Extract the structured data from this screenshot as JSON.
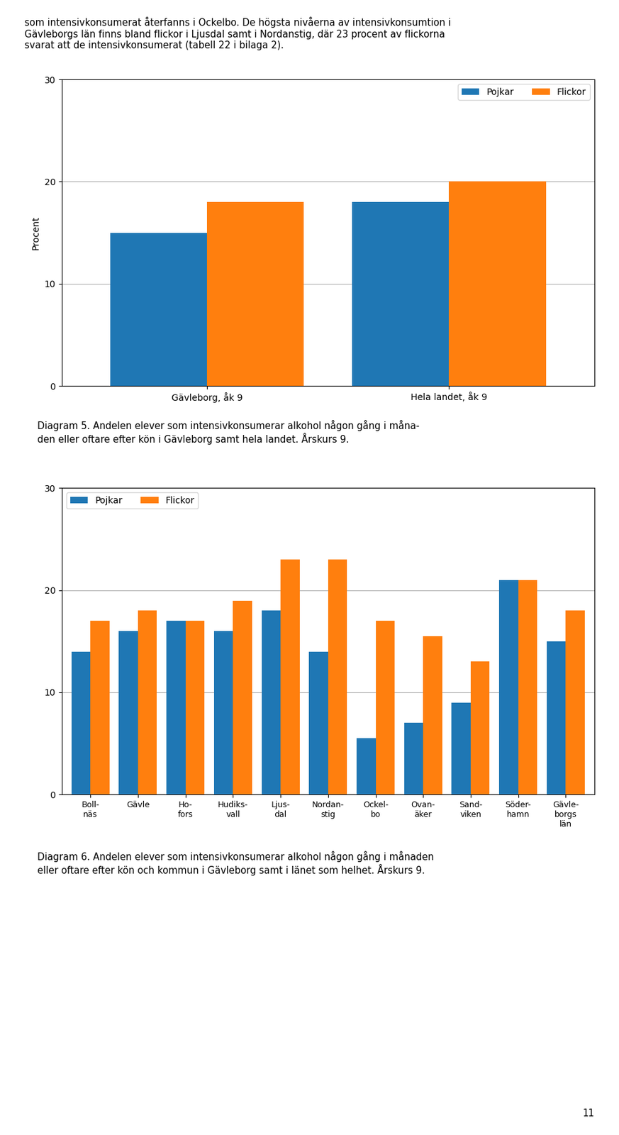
{
  "chart_data": [
    {
      "type": "bar",
      "ylabel": "Procent",
      "categories": [
        "Gävleborg, åk 9",
        "Hela landet, åk 9"
      ],
      "series": [
        {
          "name": "Pojkar",
          "values": [
            15,
            18
          ]
        },
        {
          "name": "Flickor",
          "values": [
            18,
            20
          ]
        }
      ],
      "ylim": [
        0,
        30
      ],
      "yticks": [
        0,
        10,
        20,
        30
      ],
      "grid": true,
      "legend": "upper right",
      "annotations": [
        "som intensivkonsumerat återfanns i Ockelbo. De högsta nivåerna av intensivkonsumtion i\nGävleborgs län finns bland flickor i Ljusdal samt i Nordanstig, där 23 procent av flickorna\nsvarat att de intensivkonsumerat (tabell 22 i bilaga 2).",
        "Diagram 5. Andelen elever som intensivkonsumerar alkohol någon gång i måna-\nden eller oftare efter kön i Gävleborg samt hela landet. Årskurs 9."
      ]
    },
    {
      "type": "bar",
      "categories": [
        "Boll-\nnäs",
        "Gävle",
        "Ho-\nfors",
        "Hudiks-\nvall",
        "Ljus-\ndal",
        "Nordan-\nstig",
        "Ockel-\nbo",
        "Ovan-\näker",
        "Sand-\nviken",
        "Söder-\nhamn",
        "Gävle-\nborgs\nlän"
      ],
      "series": [
        {
          "name": "Pojkar",
          "values": [
            14,
            16,
            17,
            16,
            18,
            14,
            5.5,
            7,
            9,
            21,
            15
          ]
        },
        {
          "name": "Flickor",
          "values": [
            17,
            18,
            17,
            19,
            23,
            23,
            17,
            15.5,
            13,
            21,
            18
          ]
        }
      ],
      "ylim": [
        0,
        30
      ],
      "yticks": [
        0,
        10,
        20,
        30
      ],
      "grid": true,
      "legend": "upper left",
      "annotations": [
        "Diagram 6. Andelen elever som intensivkonsumerar alkohol någon gång i månaden\neller oftare efter kön och kommun i Gävleborg samt i länet som helhet. Årskurs 9.",
        "11"
      ]
    }
  ]
}
